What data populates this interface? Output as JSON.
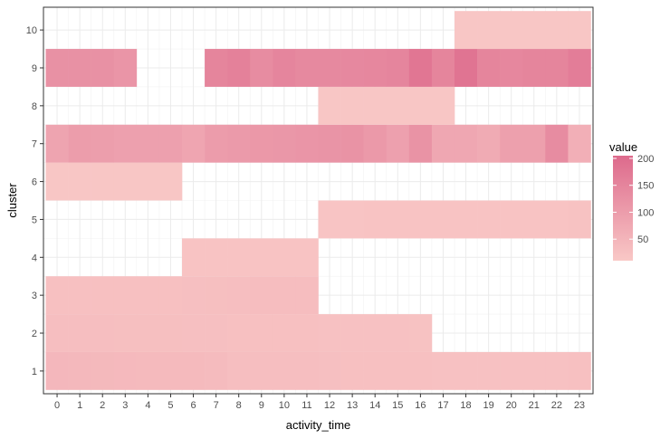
{
  "chart_data": {
    "type": "heatmap",
    "xlabel": "activity_time",
    "ylabel": "cluster",
    "x": [
      0,
      1,
      2,
      3,
      4,
      5,
      6,
      7,
      8,
      9,
      10,
      11,
      12,
      13,
      14,
      15,
      16,
      17,
      18,
      19,
      20,
      21,
      22,
      23
    ],
    "y": [
      1,
      2,
      3,
      4,
      5,
      6,
      7,
      8,
      9,
      10
    ],
    "grid": true,
    "legend": {
      "title": "value",
      "ticks": [
        50,
        100,
        150,
        200
      ],
      "range": [
        10,
        205
      ],
      "color_low": "#f9c8c6",
      "color_high": "#dd6a8c",
      "placement": "right"
    },
    "cells": [
      {
        "y": 1,
        "values": [
          45,
          43,
          42,
          41,
          40,
          40,
          39,
          38,
          30,
          30,
          30,
          30,
          28,
          27,
          26,
          26,
          26,
          25,
          25,
          25,
          25,
          25,
          25,
          26
        ]
      },
      {
        "y": 2,
        "values": [
          30,
          30,
          30,
          29,
          29,
          29,
          28,
          28,
          27,
          27,
          27,
          26,
          25,
          24,
          24,
          24,
          23,
          null,
          null,
          null,
          null,
          null,
          null,
          null
        ]
      },
      {
        "y": 3,
        "values": [
          27,
          27,
          27,
          27,
          27,
          27,
          28,
          29,
          31,
          33,
          33,
          33,
          null,
          null,
          null,
          null,
          null,
          null,
          null,
          null,
          null,
          null,
          null,
          null
        ]
      },
      {
        "y": 4,
        "values": [
          null,
          null,
          null,
          null,
          null,
          null,
          20,
          20,
          20,
          20,
          20,
          20,
          null,
          null,
          null,
          null,
          null,
          null,
          null,
          null,
          null,
          null,
          null,
          null
        ]
      },
      {
        "y": 5,
        "values": [
          null,
          null,
          null,
          null,
          null,
          null,
          null,
          null,
          null,
          null,
          null,
          null,
          18,
          18,
          20,
          20,
          20,
          20,
          20,
          20,
          20,
          20,
          20,
          22
        ]
      },
      {
        "y": 6,
        "values": [
          14,
          14,
          14,
          14,
          14,
          14,
          null,
          null,
          null,
          null,
          null,
          null,
          null,
          null,
          null,
          null,
          null,
          null,
          null,
          null,
          null,
          null,
          null,
          null
        ]
      },
      {
        "y": 7,
        "values": [
          85,
          100,
          98,
          92,
          92,
          92,
          82,
          102,
          105,
          110,
          112,
          115,
          118,
          120,
          108,
          92,
          120,
          78,
          78,
          70,
          94,
          94,
          135,
          62
        ]
      },
      {
        "y": 8,
        "values": [
          null,
          null,
          null,
          null,
          null,
          null,
          null,
          null,
          null,
          null,
          null,
          null,
          14,
          14,
          14,
          14,
          14,
          14,
          null,
          null,
          null,
          null,
          null,
          null
        ]
      },
      {
        "y": 9,
        "values": [
          125,
          125,
          125,
          115,
          null,
          null,
          null,
          150,
          158,
          135,
          148,
          140,
          140,
          142,
          145,
          148,
          180,
          150,
          185,
          150,
          145,
          150,
          150,
          165
        ]
      },
      {
        "y": 10,
        "values": [
          null,
          null,
          null,
          null,
          null,
          null,
          null,
          null,
          null,
          null,
          null,
          null,
          null,
          null,
          null,
          null,
          null,
          null,
          14,
          14,
          14,
          14,
          14,
          14
        ]
      }
    ]
  }
}
